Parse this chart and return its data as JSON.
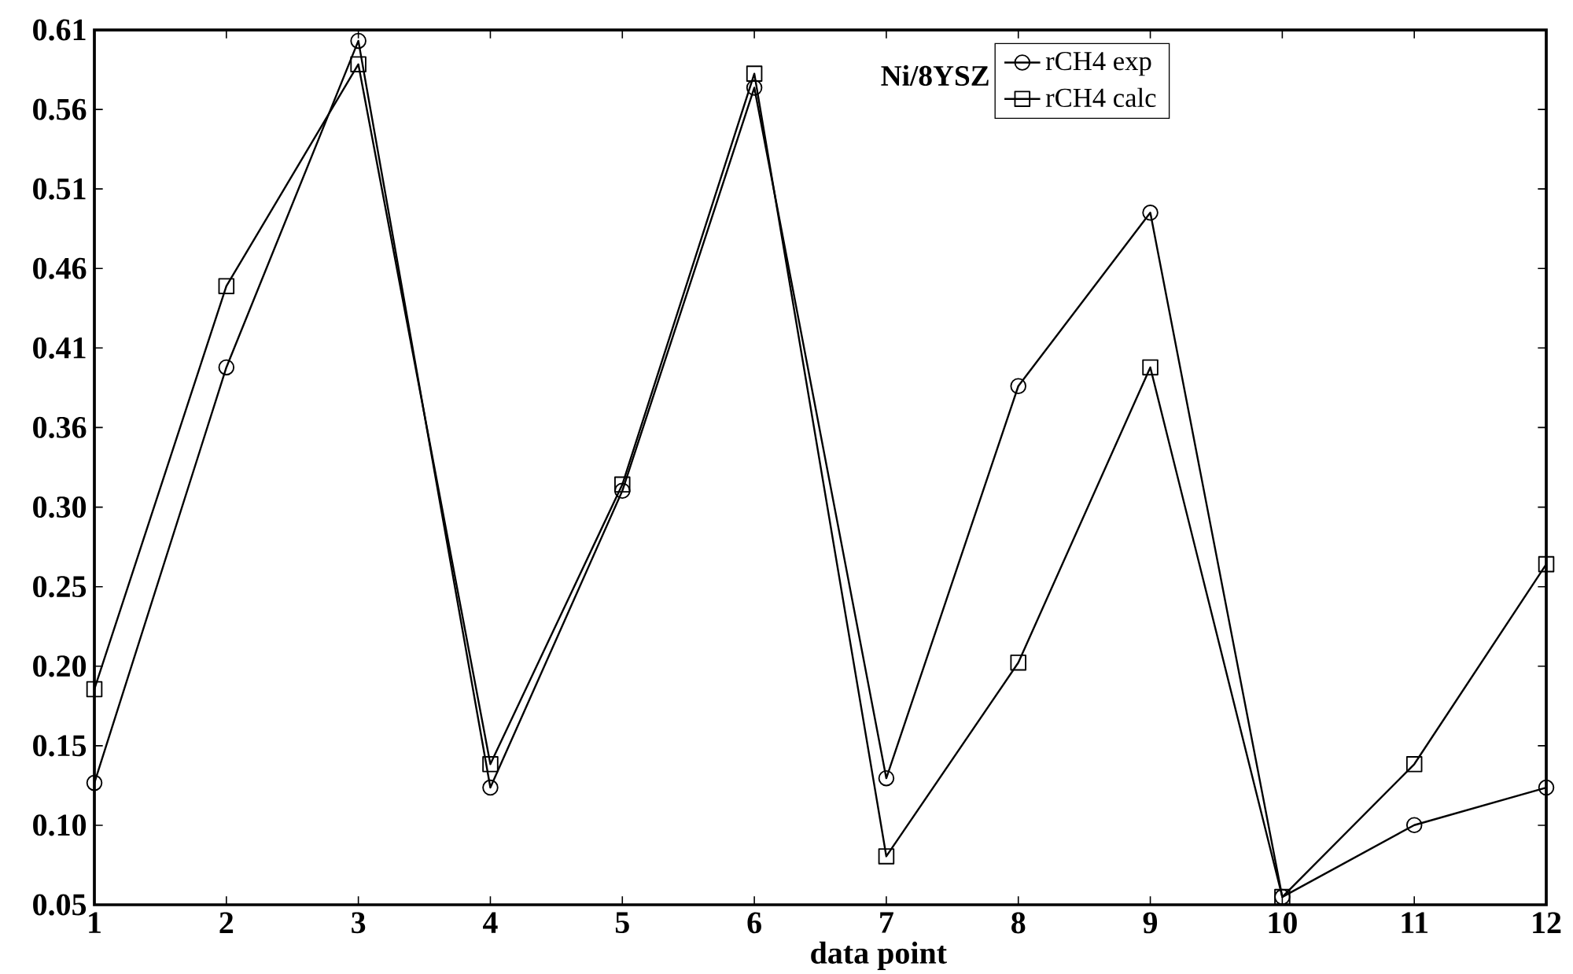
{
  "chart_data": {
    "type": "line",
    "xlabel": "data point",
    "legend_title": "Ni/8YSZ",
    "legend": "top",
    "x": [
      1,
      2,
      3,
      4,
      5,
      6,
      7,
      8,
      9,
      10,
      11,
      12
    ],
    "series": [
      {
        "name": "rCH4 exp",
        "color": "#000000",
        "marker": "circle",
        "values": [
          0.128,
          0.394,
          0.603,
          0.125,
          0.315,
          0.573,
          0.131,
          0.382,
          0.493,
          0.055,
          0.101,
          0.125
        ]
      },
      {
        "name": "rCH4 calc",
        "color": "#000000",
        "marker": "square",
        "values": [
          0.188,
          0.446,
          0.588,
          0.14,
          0.319,
          0.582,
          0.081,
          0.205,
          0.394,
          0.055,
          0.14,
          0.268
        ]
      }
    ],
    "xlim": [
      1,
      12
    ],
    "ylim": [
      0.05,
      0.61
    ],
    "xticks": [
      1,
      2,
      3,
      4,
      5,
      6,
      7,
      8,
      9,
      10,
      11,
      12
    ],
    "yticks": [
      0.05,
      {
        "value": 0.1009,
        "label": "0.10"
      },
      {
        "value": 0.1518,
        "label": "0.15"
      },
      {
        "value": 0.2027,
        "label": "0.20"
      },
      {
        "value": 0.2536,
        "label": "0.25"
      },
      {
        "value": 0.3045,
        "label": "0.30"
      },
      {
        "value": 0.3555,
        "label": "0.36"
      },
      {
        "value": 0.4064,
        "label": "0.41"
      },
      {
        "value": 0.4573,
        "label": "0.46"
      },
      {
        "value": 0.5082,
        "label": "0.51"
      },
      {
        "value": 0.5591,
        "label": "0.56"
      },
      0.61
    ],
    "grid": false,
    "line_style": "solid"
  }
}
